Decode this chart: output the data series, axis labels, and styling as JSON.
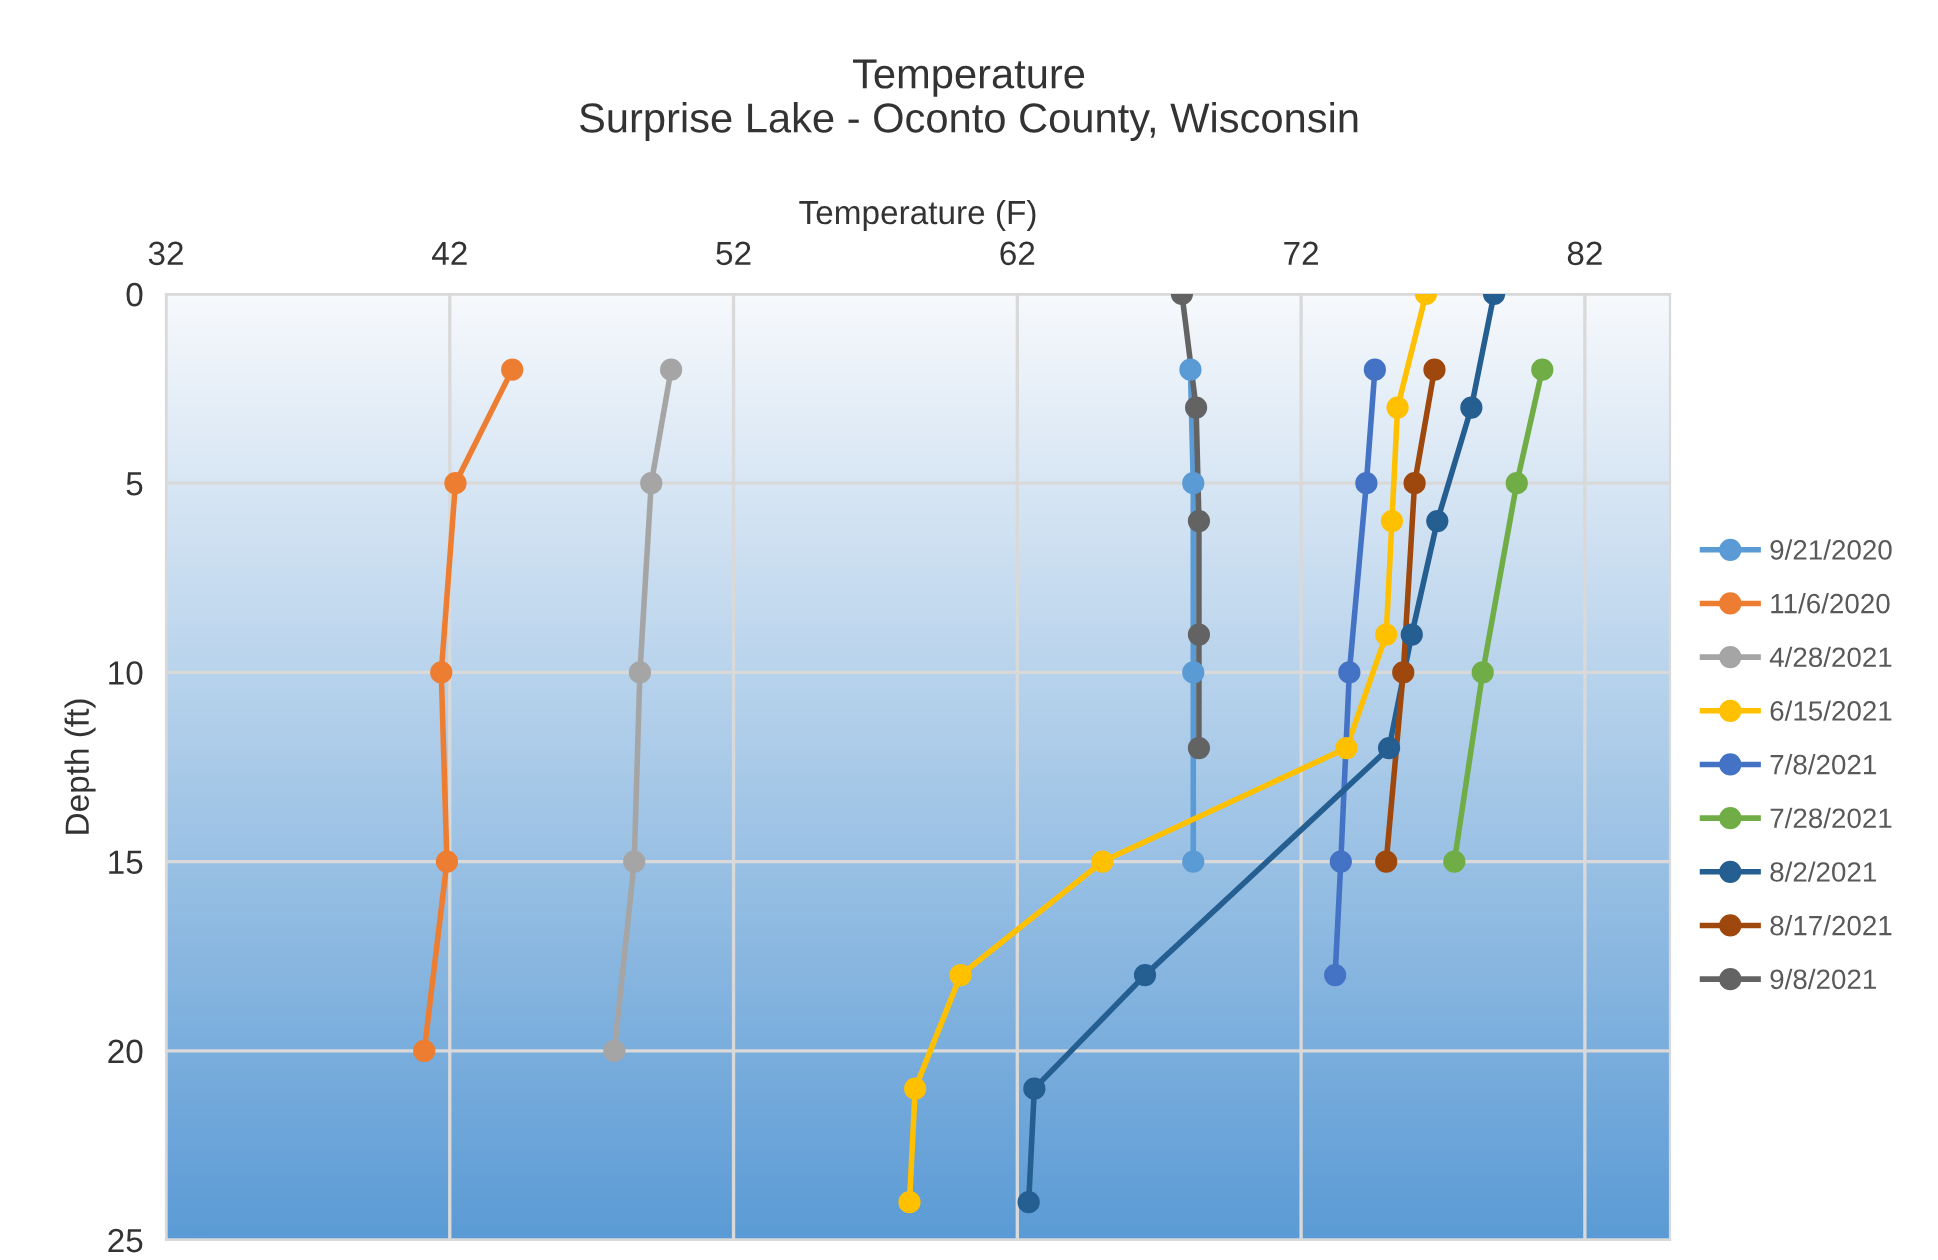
{
  "chart_data": {
    "type": "line",
    "title": "Temperature",
    "subtitle": "Surprise Lake - Oconto County, Wisconsin",
    "xlabel": "Temperature (F)",
    "ylabel": "Depth (ft)",
    "xlim": [
      32,
      85
    ],
    "xticks": [
      32,
      42,
      52,
      62,
      72,
      82
    ],
    "ylim": [
      25,
      0
    ],
    "yticks": [
      0,
      5,
      10,
      15,
      20,
      25
    ],
    "grid": true,
    "legend": "right",
    "marker": "circle",
    "line_style": "solid",
    "series": [
      {
        "name": "9/21/2020",
        "color": "#5b9bd5",
        "x": [
          68.1,
          68.2,
          68.2,
          68.2
        ],
        "values": [
          2,
          5,
          10,
          15
        ]
      },
      {
        "name": "11/6/2020",
        "color": "#ed7d31",
        "x": [
          44.2,
          42.2,
          41.7,
          41.9,
          41.1
        ],
        "values": [
          2,
          5,
          10,
          15,
          20
        ]
      },
      {
        "name": "4/28/2021",
        "color": "#a5a5a5",
        "x": [
          49.8,
          49.1,
          48.7,
          48.5,
          47.8
        ],
        "values": [
          2,
          5,
          10,
          15,
          20
        ]
      },
      {
        "name": "6/15/2021",
        "color": "#ffc000",
        "x": [
          76.4,
          75.4,
          75.2,
          75.0,
          73.6,
          65.0,
          60.0,
          58.4,
          58.2
        ],
        "values": [
          0,
          3,
          6,
          9,
          12,
          15,
          18,
          21,
          24
        ]
      },
      {
        "name": "7/8/2021",
        "color": "#4472c4",
        "x": [
          74.6,
          74.3,
          73.7,
          73.4,
          73.2
        ],
        "values": [
          2,
          5,
          10,
          15,
          18
        ]
      },
      {
        "name": "7/28/2021",
        "color": "#70ad47",
        "x": [
          80.5,
          79.6,
          78.4,
          77.4
        ],
        "values": [
          2,
          5,
          10,
          15
        ]
      },
      {
        "name": "8/2/2021",
        "color": "#255e91",
        "x": [
          78.8,
          78.0,
          76.8,
          75.9,
          75.1,
          66.5,
          62.6,
          62.4
        ],
        "values": [
          0,
          3,
          6,
          9,
          12,
          18,
          21,
          24
        ]
      },
      {
        "name": "8/17/2021",
        "color": "#9e480e",
        "x": [
          76.7,
          76.0,
          75.6,
          75.0
        ],
        "values": [
          2,
          5,
          10,
          15
        ]
      },
      {
        "name": "9/8/2021",
        "color": "#636363",
        "x": [
          67.8,
          68.3,
          68.4,
          68.4,
          68.4
        ],
        "values": [
          0,
          3,
          6,
          9,
          12
        ]
      }
    ]
  }
}
